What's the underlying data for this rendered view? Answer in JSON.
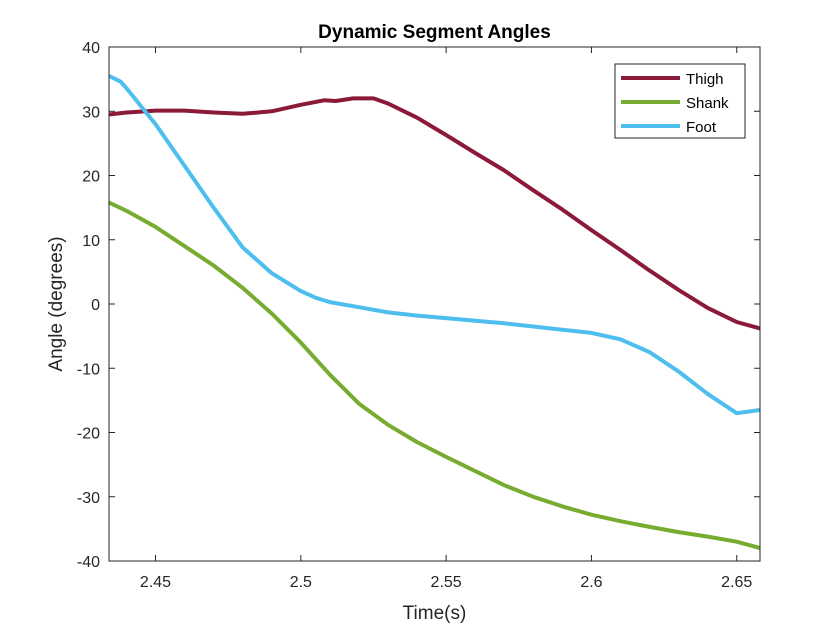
{
  "chart_data": {
    "type": "line",
    "title": "Dynamic Segment Angles",
    "xlabel": "Time(s)",
    "ylabel": "Angle (degrees)",
    "xlim": [
      2.434,
      2.658
    ],
    "ylim": [
      -40,
      40
    ],
    "xticks": [
      2.45,
      2.5,
      2.55,
      2.6,
      2.65
    ],
    "xtick_labels": [
      "2.45",
      "2.5",
      "2.55",
      "2.6",
      "2.65"
    ],
    "yticks": [
      -40,
      -30,
      -20,
      -10,
      0,
      10,
      20,
      30,
      40
    ],
    "ytick_labels": [
      "-40",
      "-30",
      "-20",
      "-10",
      "0",
      "10",
      "20",
      "30",
      "40"
    ],
    "grid": false,
    "legend_position": "top-right",
    "series": [
      {
        "name": "Thigh",
        "color": "#8b1a38",
        "x": [
          2.434,
          2.44,
          2.45,
          2.46,
          2.47,
          2.48,
          2.49,
          2.5,
          2.508,
          2.512,
          2.518,
          2.525,
          2.53,
          2.54,
          2.55,
          2.56,
          2.57,
          2.58,
          2.59,
          2.6,
          2.61,
          2.62,
          2.63,
          2.64,
          2.65,
          2.658
        ],
        "y": [
          29.5,
          29.8,
          30.1,
          30.1,
          29.8,
          29.6,
          30.0,
          31.0,
          31.7,
          31.6,
          32.0,
          32.0,
          31.2,
          29.0,
          26.3,
          23.5,
          20.8,
          17.7,
          14.7,
          11.5,
          8.4,
          5.2,
          2.2,
          -0.6,
          -2.8,
          -3.8
        ]
      },
      {
        "name": "Shank",
        "color": "#77ac30",
        "x": [
          2.434,
          2.44,
          2.45,
          2.46,
          2.47,
          2.48,
          2.49,
          2.5,
          2.51,
          2.52,
          2.53,
          2.54,
          2.55,
          2.56,
          2.57,
          2.58,
          2.59,
          2.6,
          2.61,
          2.62,
          2.63,
          2.64,
          2.65,
          2.658
        ],
        "y": [
          15.8,
          14.5,
          12.0,
          9.0,
          6.0,
          2.5,
          -1.5,
          -6.0,
          -11.0,
          -15.5,
          -18.8,
          -21.5,
          -23.8,
          -26.0,
          -28.2,
          -30.0,
          -31.5,
          -32.8,
          -33.8,
          -34.7,
          -35.5,
          -36.2,
          -37.0,
          -38.0
        ]
      },
      {
        "name": "Foot",
        "color": "#4dbeee",
        "x": [
          2.434,
          2.438,
          2.44,
          2.45,
          2.46,
          2.47,
          2.48,
          2.49,
          2.5,
          2.505,
          2.51,
          2.52,
          2.53,
          2.54,
          2.55,
          2.56,
          2.57,
          2.58,
          2.59,
          2.6,
          2.61,
          2.62,
          2.63,
          2.64,
          2.65,
          2.658
        ],
        "y": [
          35.5,
          34.6,
          33.6,
          28.0,
          21.5,
          15.0,
          8.8,
          4.8,
          2.0,
          1.0,
          0.3,
          -0.5,
          -1.3,
          -1.8,
          -2.2,
          -2.6,
          -3.0,
          -3.5,
          -4.0,
          -4.5,
          -5.5,
          -7.5,
          -10.5,
          -14.0,
          -17.0,
          -16.5
        ]
      }
    ]
  }
}
